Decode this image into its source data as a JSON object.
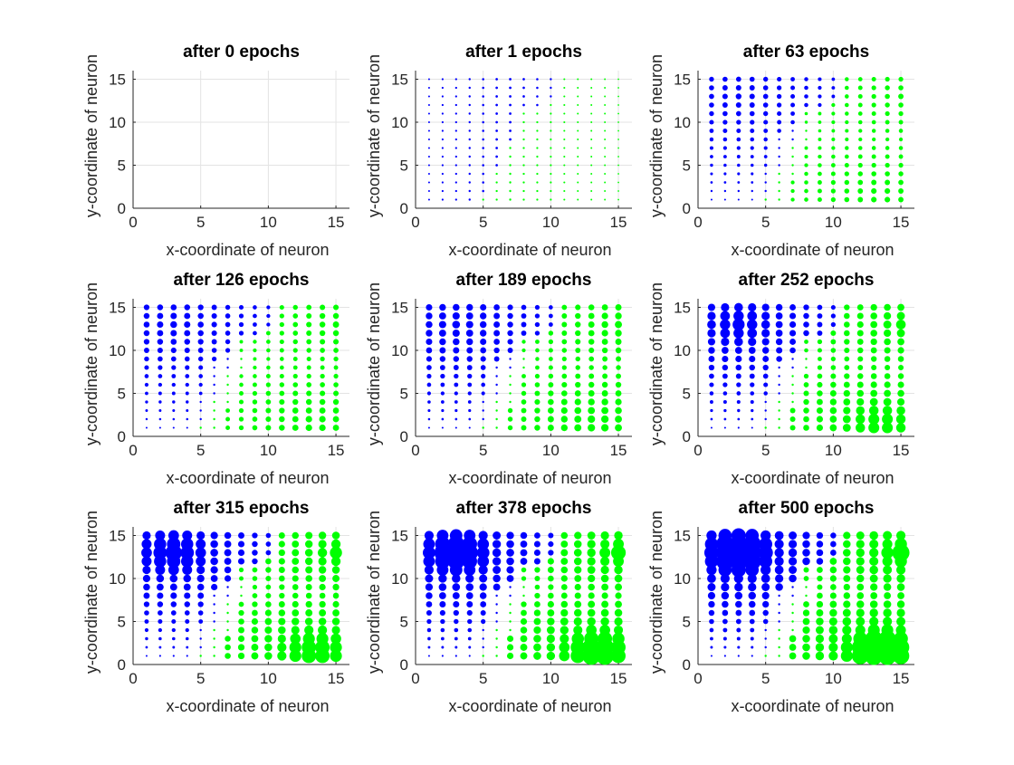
{
  "chart_data": {
    "type": "scatter",
    "grid": true,
    "layout": "3x3 grid of subplots",
    "series_colors": {
      "class_a": "#0000ff",
      "class_b": "#00ff00"
    },
    "panel_common": {
      "xlabel": "x-coordinate of neuron",
      "ylabel": "y-coordinate of neuron",
      "xlim": [
        0,
        16
      ],
      "ylim": [
        0,
        16
      ],
      "xticks": [
        0,
        5,
        10,
        15
      ],
      "yticks": [
        0,
        5,
        10,
        15
      ],
      "neuron_grid": "15x15 neurons at integer coordinates 1..15",
      "marker_size_note": "marker area grows with the number of samples mapped to the neuron"
    },
    "panels": [
      {
        "title": "after 0 epochs",
        "epoch": 0,
        "progress": 0
      },
      {
        "title": "after 1 epochs",
        "epoch": 1,
        "progress": 0.15
      },
      {
        "title": "after 63 epochs",
        "epoch": 63,
        "progress": 0.4
      },
      {
        "title": "after 126 epochs",
        "epoch": 126,
        "progress": 0.5
      },
      {
        "title": "after 189 epochs",
        "epoch": 189,
        "progress": 0.6
      },
      {
        "title": "after 252 epochs",
        "epoch": 252,
        "progress": 0.7
      },
      {
        "title": "after 315 epochs",
        "epoch": 315,
        "progress": 0.8
      },
      {
        "title": "after 378 epochs",
        "epoch": 378,
        "progress": 0.9
      },
      {
        "title": "after 500 epochs",
        "epoch": 500,
        "progress": 1.0
      }
    ],
    "clusters": [
      {
        "class": "class_a",
        "center": [
          3,
          13
        ],
        "note": "large blue markers around (1-5, 12-15) in late epochs"
      },
      {
        "class": "class_b",
        "center": [
          13,
          1.5
        ],
        "note": "large green markers around (12-15, 1-4) and (15, 13) in late epochs"
      }
    ]
  }
}
